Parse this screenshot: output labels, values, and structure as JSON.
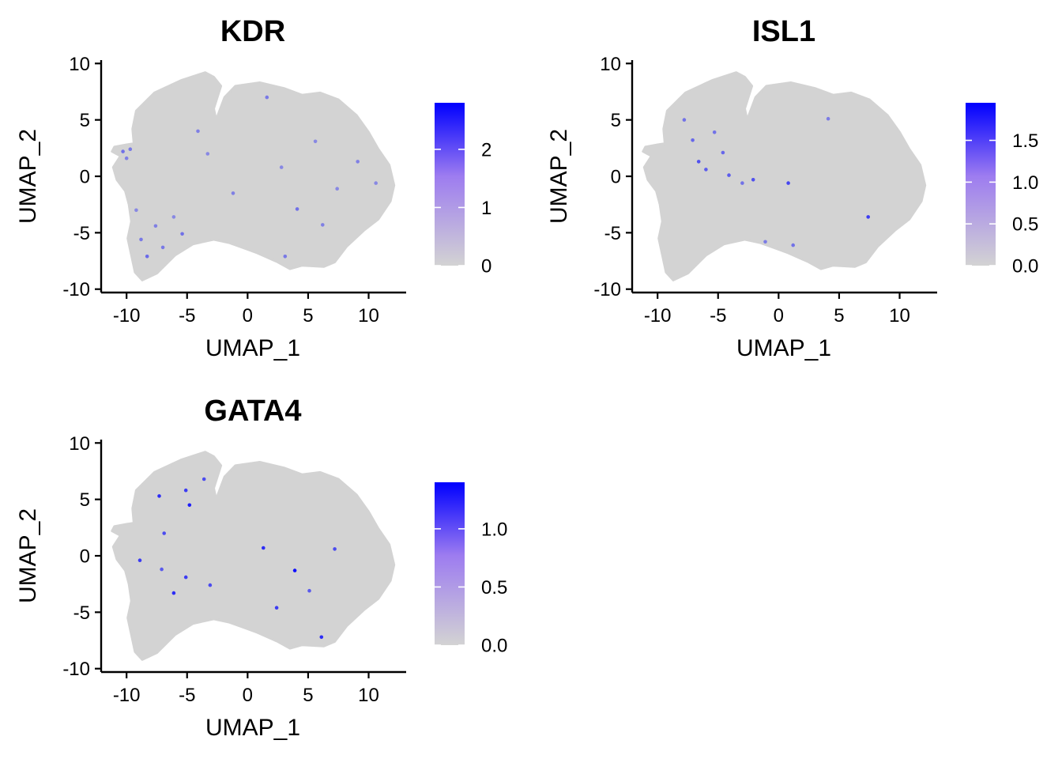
{
  "chart_data": [
    {
      "type": "scatter",
      "title": "KDR",
      "xlabel": "UMAP_1",
      "ylabel": "UMAP_2",
      "xlim": [
        -12.1,
        13.1
      ],
      "ylim": [
        -10.3,
        10.3
      ],
      "x_ticks": [
        -10,
        -5,
        0,
        5,
        10
      ],
      "x_tick_labels": [
        "-10",
        "-5",
        "0",
        "5",
        "10"
      ],
      "y_ticks": [
        -10,
        -5,
        0,
        5,
        10
      ],
      "y_tick_labels": [
        "-10",
        "-5",
        "0",
        "5",
        "10"
      ],
      "color_scale": {
        "low": "#d3d3d3",
        "high": "#0000ff",
        "min": 0,
        "max": 2.8,
        "breaks": [
          0,
          1,
          2
        ],
        "break_labels": [
          "0",
          "1",
          "2"
        ]
      },
      "legend_position": "right",
      "grid": false,
      "highlights": [
        {
          "x": -10.3,
          "y": 2.2,
          "v": 1.3
        },
        {
          "x": -10.0,
          "y": 1.6,
          "v": 1.1
        },
        {
          "x": -9.7,
          "y": 2.4,
          "v": 1.2
        },
        {
          "x": -9.2,
          "y": -3.0,
          "v": 1.0
        },
        {
          "x": -8.8,
          "y": -5.6,
          "v": 1.2
        },
        {
          "x": -8.3,
          "y": -7.1,
          "v": 1.4
        },
        {
          "x": -7.6,
          "y": -4.4,
          "v": 1.1
        },
        {
          "x": -7.0,
          "y": -6.3,
          "v": 1.2
        },
        {
          "x": -6.1,
          "y": -3.6,
          "v": 1.0
        },
        {
          "x": -5.4,
          "y": -5.1,
          "v": 1.3
        },
        {
          "x": -4.1,
          "y": 4.0,
          "v": 1.1
        },
        {
          "x": -3.3,
          "y": 2.0,
          "v": 1.0
        },
        {
          "x": -1.2,
          "y": -1.5,
          "v": 1.1
        },
        {
          "x": 1.6,
          "y": 7.0,
          "v": 1.2
        },
        {
          "x": 2.8,
          "y": 0.8,
          "v": 1.0
        },
        {
          "x": 4.1,
          "y": -2.9,
          "v": 1.3
        },
        {
          "x": 6.2,
          "y": -4.3,
          "v": 1.1
        },
        {
          "x": 7.4,
          "y": -1.1,
          "v": 1.0
        },
        {
          "x": 9.1,
          "y": 1.3,
          "v": 1.1
        },
        {
          "x": 10.6,
          "y": -0.6,
          "v": 1.0
        },
        {
          "x": 3.1,
          "y": -7.1,
          "v": 1.2
        },
        {
          "x": 5.6,
          "y": 3.1,
          "v": 1.0
        }
      ]
    },
    {
      "type": "scatter",
      "title": "ISL1",
      "xlabel": "UMAP_1",
      "ylabel": "UMAP_2",
      "xlim": [
        -12.1,
        13.1
      ],
      "ylim": [
        -10.3,
        10.3
      ],
      "x_ticks": [
        -10,
        -5,
        0,
        5,
        10
      ],
      "x_tick_labels": [
        "-10",
        "-5",
        "0",
        "5",
        "10"
      ],
      "y_ticks": [
        -10,
        -5,
        0,
        5,
        10
      ],
      "y_tick_labels": [
        "-10",
        "-5",
        "0",
        "5",
        "10"
      ],
      "color_scale": {
        "low": "#d3d3d3",
        "high": "#0000ff",
        "min": 0,
        "max": 1.95,
        "breaks": [
          0,
          0.5,
          1,
          1.5
        ],
        "break_labels": [
          "0.0",
          "0.5",
          "1.0",
          "1.5"
        ]
      },
      "legend_position": "right",
      "grid": false,
      "highlights": [
        {
          "x": -7.8,
          "y": 5.0,
          "v": 0.9
        },
        {
          "x": -7.1,
          "y": 3.2,
          "v": 1.0
        },
        {
          "x": -6.6,
          "y": 1.3,
          "v": 1.2
        },
        {
          "x": -6.0,
          "y": 0.6,
          "v": 1.1
        },
        {
          "x": -5.3,
          "y": 3.9,
          "v": 0.9
        },
        {
          "x": -4.6,
          "y": 2.1,
          "v": 1.0
        },
        {
          "x": -4.1,
          "y": 0.1,
          "v": 1.1
        },
        {
          "x": -3.0,
          "y": -0.6,
          "v": 0.9
        },
        {
          "x": -2.1,
          "y": -0.3,
          "v": 1.2
        },
        {
          "x": 0.8,
          "y": -0.6,
          "v": 1.3
        },
        {
          "x": 4.1,
          "y": 5.1,
          "v": 0.8
        },
        {
          "x": 7.4,
          "y": -3.6,
          "v": 1.4
        },
        {
          "x": -1.1,
          "y": -5.8,
          "v": 0.8
        },
        {
          "x": 1.2,
          "y": -6.1,
          "v": 0.9
        }
      ]
    },
    {
      "type": "scatter",
      "title": "GATA4",
      "xlabel": "UMAP_1",
      "ylabel": "UMAP_2",
      "xlim": [
        -12.1,
        13.1
      ],
      "ylim": [
        -10.3,
        10.3
      ],
      "x_ticks": [
        -10,
        -5,
        0,
        5,
        10
      ],
      "x_tick_labels": [
        "-10",
        "-5",
        "0",
        "5",
        "10"
      ],
      "y_ticks": [
        -10,
        -5,
        0,
        5,
        10
      ],
      "y_tick_labels": [
        "-10",
        "-5",
        "0",
        "5",
        "10"
      ],
      "color_scale": {
        "low": "#d3d3d3",
        "high": "#0000ff",
        "min": 0,
        "max": 1.4,
        "breaks": [
          0,
          0.5,
          1
        ],
        "break_labels": [
          "0.0",
          "0.5",
          "1.0"
        ]
      },
      "legend_position": "right",
      "grid": false,
      "highlights": [
        {
          "x": -7.3,
          "y": 5.3,
          "v": 1.1
        },
        {
          "x": -6.9,
          "y": 2.0,
          "v": 0.9
        },
        {
          "x": -5.1,
          "y": 5.8,
          "v": 1.0
        },
        {
          "x": -4.8,
          "y": 4.5,
          "v": 1.2
        },
        {
          "x": -3.6,
          "y": 6.8,
          "v": 0.9
        },
        {
          "x": -8.9,
          "y": -0.4,
          "v": 1.0
        },
        {
          "x": -7.1,
          "y": -1.2,
          "v": 0.8
        },
        {
          "x": -6.1,
          "y": -3.3,
          "v": 1.1
        },
        {
          "x": -5.1,
          "y": -1.9,
          "v": 1.0
        },
        {
          "x": -3.1,
          "y": -2.6,
          "v": 0.9
        },
        {
          "x": 1.3,
          "y": 0.7,
          "v": 1.1
        },
        {
          "x": 3.9,
          "y": -1.3,
          "v": 1.3
        },
        {
          "x": 5.1,
          "y": -3.1,
          "v": 0.8
        },
        {
          "x": 7.2,
          "y": 0.6,
          "v": 0.9
        },
        {
          "x": 2.4,
          "y": -4.6,
          "v": 1.0
        },
        {
          "x": 6.1,
          "y": -7.2,
          "v": 1.1
        }
      ]
    }
  ]
}
